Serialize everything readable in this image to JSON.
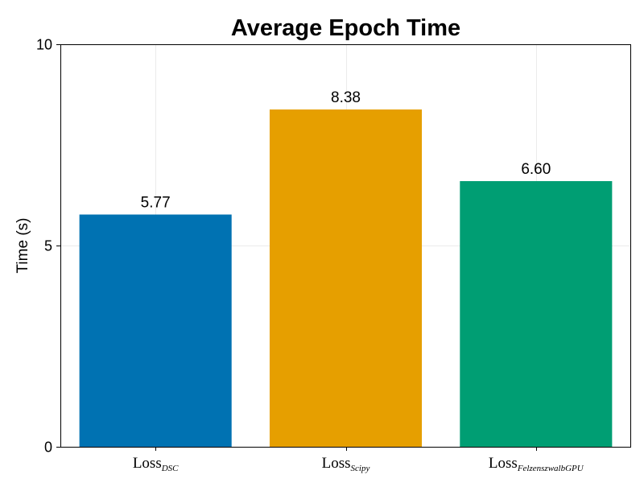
{
  "chart_data": {
    "type": "bar",
    "title": "Average Epoch Time",
    "xlabel": "",
    "ylabel": "Time (s)",
    "ylim": [
      0,
      10
    ],
    "yticks": [
      0,
      5,
      10
    ],
    "grid": true,
    "categories": [
      {
        "base": "Loss",
        "sub": "DSC"
      },
      {
        "base": "Loss",
        "sub": "Scipy"
      },
      {
        "base": "Loss",
        "sub": "FelzenszwalbGPU"
      }
    ],
    "values": [
      5.77,
      8.38,
      6.6
    ],
    "value_labels": [
      "5.77",
      "8.38",
      "6.60"
    ],
    "colors": [
      "#0072b2",
      "#e69f00",
      "#009e73"
    ]
  }
}
